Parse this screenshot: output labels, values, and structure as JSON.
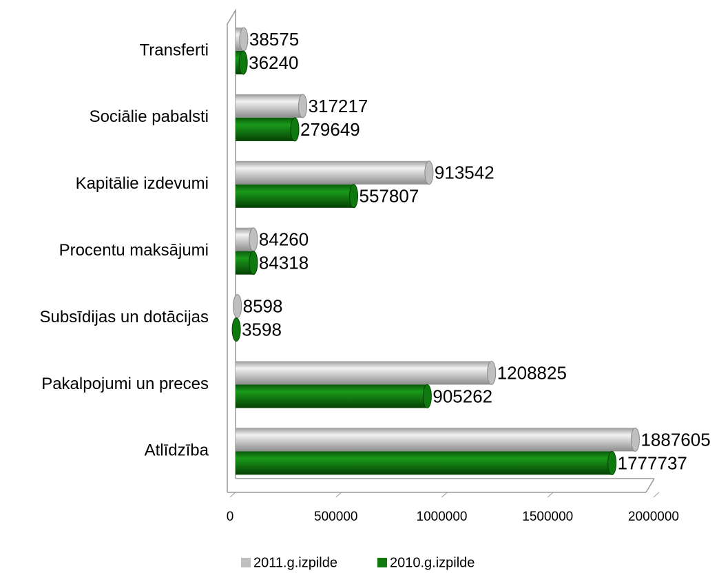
{
  "chart_data": {
    "type": "bar",
    "orientation": "horizontal",
    "categories": [
      "Transferti",
      "Sociālie pabalsti",
      "Kapitālie izdevumi",
      "Procentu maksājumi",
      "Subsīdijas un dotācijas",
      "Pakalpojumi un preces",
      "Atlīdzība"
    ],
    "series": [
      {
        "name": "2011.g.izpilde",
        "color": "#bfbfbf",
        "values": [
          38575,
          317217,
          913542,
          84260,
          8598,
          1208825,
          1887605
        ]
      },
      {
        "name": "2010.g.izpilde",
        "color": "#0e7a0e",
        "values": [
          36240,
          279649,
          557807,
          84318,
          3598,
          905262,
          1777737
        ]
      }
    ],
    "xlim": [
      0,
      2000000
    ],
    "xticks": [
      0,
      500000,
      1000000,
      1500000,
      2000000
    ],
    "legend": "bottom"
  }
}
